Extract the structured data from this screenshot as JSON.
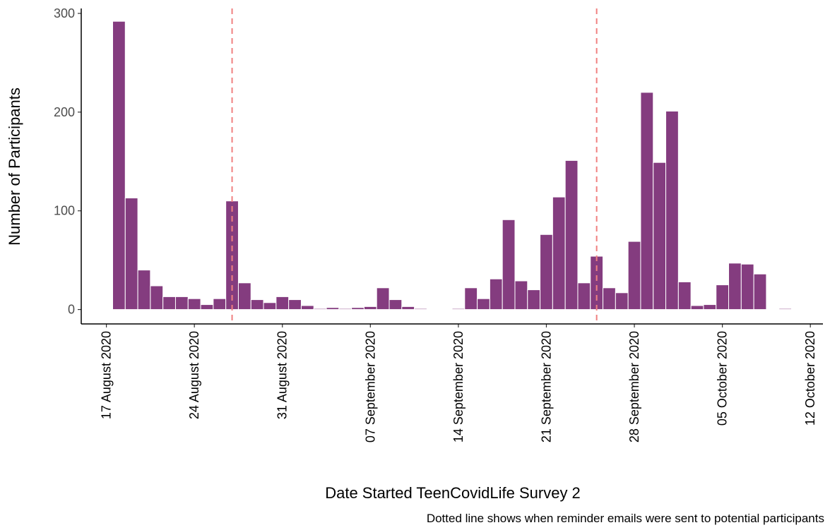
{
  "chart_data": {
    "type": "bar",
    "x_label": "Date Started TeenCovidLife Survey 2",
    "y_label": "Number of Participants",
    "caption": "Dotted line shows when reminder emails were sent to potential participants",
    "x": [
      "2020-08-18",
      "2020-08-19",
      "2020-08-20",
      "2020-08-21",
      "2020-08-22",
      "2020-08-23",
      "2020-08-24",
      "2020-08-25",
      "2020-08-26",
      "2020-08-27",
      "2020-08-28",
      "2020-08-29",
      "2020-08-30",
      "2020-08-31",
      "2020-09-01",
      "2020-09-02",
      "2020-09-03",
      "2020-09-04",
      "2020-09-05",
      "2020-09-06",
      "2020-09-07",
      "2020-09-08",
      "2020-09-09",
      "2020-09-10",
      "2020-09-11",
      "2020-09-12",
      "2020-09-13",
      "2020-09-14",
      "2020-09-15",
      "2020-09-16",
      "2020-09-17",
      "2020-09-18",
      "2020-09-19",
      "2020-09-20",
      "2020-09-21",
      "2020-09-22",
      "2020-09-23",
      "2020-09-24",
      "2020-09-25",
      "2020-09-26",
      "2020-09-27",
      "2020-09-28",
      "2020-09-29",
      "2020-09-30",
      "2020-10-01",
      "2020-10-02",
      "2020-10-03",
      "2020-10-04",
      "2020-10-05",
      "2020-10-06",
      "2020-10-07",
      "2020-10-08",
      "2020-10-09",
      "2020-10-10"
    ],
    "values": [
      292,
      113,
      40,
      24,
      13,
      13,
      11,
      5,
      11,
      110,
      27,
      10,
      7,
      13,
      10,
      4,
      1,
      2,
      1,
      2,
      3,
      22,
      10,
      3,
      1,
      null,
      null,
      1,
      22,
      11,
      31,
      91,
      29,
      20,
      76,
      114,
      151,
      27,
      54,
      22,
      17,
      69,
      220,
      149,
      201,
      28,
      4,
      5,
      25,
      47,
      46,
      36,
      null,
      1
    ],
    "color": "#843c7f",
    "xlim": [
      "2020-08-15",
      "2020-10-13"
    ],
    "xticks": [
      {
        "value": "2020-08-17",
        "label": "17 August 2020"
      },
      {
        "value": "2020-08-24",
        "label": "24 August 2020"
      },
      {
        "value": "2020-08-31",
        "label": "31 August 2020"
      },
      {
        "value": "2020-09-07",
        "label": "07 September 2020"
      },
      {
        "value": "2020-09-14",
        "label": "14 September 2020"
      },
      {
        "value": "2020-09-21",
        "label": "21 September 2020"
      },
      {
        "value": "2020-09-28",
        "label": "28 September 2020"
      },
      {
        "value": "2020-10-05",
        "label": "05 October 2020"
      },
      {
        "value": "2020-10-12",
        "label": "12 October 2020"
      }
    ],
    "ylim": [
      -14.6,
      305
    ],
    "yticks": [
      0,
      100,
      200,
      300
    ],
    "grid": false,
    "vlines": [
      "2020-08-27",
      "2020-09-25"
    ],
    "vline_color": "#f08080"
  }
}
